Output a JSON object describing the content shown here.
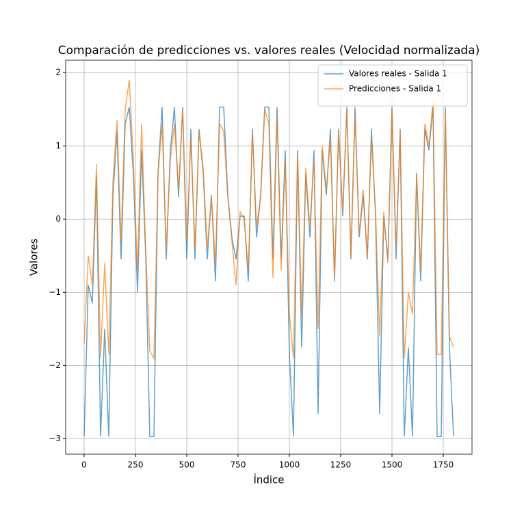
{
  "chart_data": {
    "type": "line",
    "title": "Comparación de predicciones vs. valores reales (Velocidad normalizada)",
    "x_label": "Índice",
    "y_label": "Valores",
    "x": [
      0,
      20,
      40,
      60,
      80,
      100,
      120,
      140,
      160,
      180,
      200,
      220,
      240,
      260,
      280,
      300,
      320,
      340,
      360,
      380,
      400,
      420,
      440,
      460,
      480,
      500,
      520,
      540,
      560,
      580,
      600,
      620,
      640,
      660,
      680,
      700,
      720,
      740,
      760,
      780,
      800,
      820,
      840,
      860,
      880,
      900,
      920,
      940,
      960,
      980,
      1000,
      1020,
      1040,
      1060,
      1080,
      1100,
      1120,
      1140,
      1160,
      1180,
      1200,
      1220,
      1240,
      1260,
      1280,
      1300,
      1320,
      1340,
      1360,
      1380,
      1400,
      1420,
      1440,
      1460,
      1480,
      1500,
      1520,
      1540,
      1560,
      1580,
      1600,
      1620,
      1640,
      1660,
      1680,
      1700,
      1720,
      1740,
      1760,
      1780,
      1800
    ],
    "series": [
      {
        "name": "Valores reales - Salida 1",
        "color": "#1f77b4",
        "values": [
          -2.97,
          -0.9,
          -1.15,
          0.6,
          -2.97,
          -1.5,
          -2.97,
          0.3,
          1.2,
          -0.55,
          1.3,
          1.53,
          0.6,
          -1.0,
          0.94,
          -0.5,
          -2.97,
          -2.97,
          0.63,
          1.53,
          -0.55,
          0.94,
          1.53,
          0.3,
          1.53,
          -0.55,
          1.23,
          -0.55,
          1.23,
          0.63,
          -0.55,
          0.33,
          -0.85,
          1.53,
          1.53,
          0.33,
          -0.25,
          -0.55,
          0.04,
          0.04,
          -0.85,
          1.23,
          -0.25,
          0.33,
          1.53,
          1.53,
          -0.55,
          1.53,
          -0.55,
          0.94,
          -1.85,
          -2.97,
          0.94,
          -1.75,
          0.63,
          -0.25,
          0.94,
          -2.66,
          0.94,
          0.33,
          1.23,
          -0.85,
          1.23,
          0.04,
          1.53,
          -0.55,
          1.53,
          -0.25,
          0.33,
          -0.55,
          1.23,
          0.04,
          -2.66,
          0.04,
          -0.55,
          1.53,
          -0.55,
          1.23,
          -2.97,
          -1.75,
          -2.97,
          0.63,
          -0.85,
          1.23,
          0.94,
          1.53,
          -2.97,
          -2.97,
          1.53,
          -1.75,
          -2.97
        ]
      },
      {
        "name": "Predicciones - Salida 1",
        "color": "#ff7f0e",
        "values": [
          -1.7,
          -0.5,
          -0.9,
          0.75,
          -1.9,
          -0.6,
          -1.85,
          0.5,
          1.35,
          -0.3,
          1.5,
          1.9,
          0.8,
          -0.7,
          1.3,
          -0.4,
          -1.8,
          -1.9,
          0.6,
          1.3,
          -0.4,
          0.8,
          1.3,
          0.4,
          1.5,
          -0.3,
          1.1,
          -0.4,
          1.2,
          0.7,
          -0.4,
          0.3,
          -0.6,
          1.3,
          1.2,
          0.3,
          -0.3,
          -0.9,
          0.1,
          0.0,
          -0.7,
          1.2,
          -0.1,
          0.3,
          1.5,
          1.3,
          -0.8,
          1.4,
          -0.7,
          0.8,
          -1.3,
          -1.9,
          0.9,
          -1.3,
          0.7,
          -0.1,
          0.8,
          -1.5,
          1.0,
          0.4,
          1.1,
          -0.8,
          1.2,
          0.1,
          1.5,
          -0.5,
          1.4,
          -0.2,
          0.4,
          -0.5,
          1.1,
          0.1,
          -1.6,
          0.1,
          -0.6,
          1.5,
          -0.4,
          1.2,
          -1.9,
          -1.0,
          -1.3,
          0.6,
          -0.7,
          1.3,
          1.0,
          1.6,
          -1.85,
          -1.85,
          1.45,
          -1.6,
          -1.75
        ]
      }
    ],
    "xlim": [
      -90,
      1890
    ],
    "ylim": [
      -3.21,
      2.17
    ],
    "xticks": [
      0,
      250,
      500,
      750,
      1000,
      1250,
      1500,
      1750
    ],
    "yticks": [
      {
        "value": -3,
        "label": "−3"
      },
      {
        "value": -2,
        "label": "−2"
      },
      {
        "value": -1,
        "label": "−1"
      },
      0,
      1,
      2
    ],
    "grid": true,
    "legend": "upper right"
  }
}
